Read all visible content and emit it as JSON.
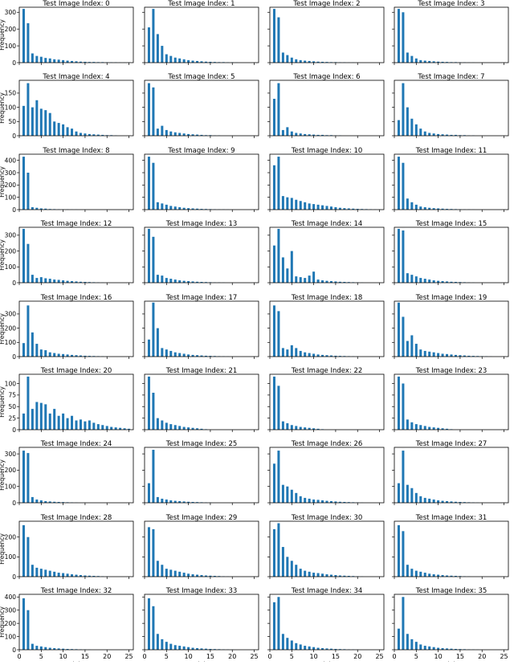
{
  "chart_data": {
    "type": "bar",
    "layout": "grid",
    "grid": {
      "rows": 9,
      "cols": 4
    },
    "bar_color": "#1f77b4",
    "xlabel": "|S|",
    "ylabel": "Frequency",
    "xlim": [
      0,
      26
    ],
    "x_ticks": [
      0,
      5,
      10,
      15,
      20,
      25
    ],
    "panels": [
      {
        "title": "Test Image Index: 0",
        "ylim": [
          0,
          330
        ],
        "y_ticks": [
          0,
          100,
          200,
          300
        ],
        "values": [
          320,
          235,
          55,
          40,
          35,
          28,
          25,
          20,
          18,
          15,
          12,
          10,
          8,
          6,
          5,
          4,
          4,
          3,
          3,
          2,
          2,
          2,
          1,
          1,
          1
        ]
      },
      {
        "title": "Test Image Index: 1",
        "ylim": [
          0,
          330
        ],
        "y_ticks": [
          0,
          100,
          200,
          300
        ],
        "values": [
          210,
          320,
          170,
          100,
          50,
          40,
          30,
          25,
          20,
          15,
          12,
          10,
          8,
          6,
          5,
          4,
          3,
          3,
          2,
          2,
          1
        ]
      },
      {
        "title": "Test Image Index: 2",
        "ylim": [
          0,
          330
        ],
        "y_ticks": [
          0,
          100,
          200,
          300
        ],
        "values": [
          320,
          270,
          60,
          45,
          30,
          20,
          15,
          12,
          10,
          8,
          6,
          5,
          4,
          3,
          3,
          2,
          2,
          1,
          1
        ]
      },
      {
        "title": "Test Image Index: 3",
        "ylim": [
          0,
          330
        ],
        "y_ticks": [
          0,
          100,
          200,
          300
        ],
        "values": [
          320,
          300,
          60,
          40,
          25,
          15,
          12,
          10,
          8,
          6,
          5,
          4,
          3,
          3,
          2,
          2,
          1,
          1
        ]
      },
      {
        "title": "Test Image Index: 4",
        "ylim": [
          0,
          195
        ],
        "y_ticks": [
          0,
          50,
          100,
          150
        ],
        "values": [
          105,
          185,
          100,
          125,
          95,
          90,
          80,
          50,
          45,
          40,
          30,
          25,
          15,
          10,
          8,
          6,
          5,
          4,
          3,
          2,
          2,
          1
        ]
      },
      {
        "title": "Test Image Index: 5",
        "ylim": [
          0,
          195
        ],
        "y_ticks": [
          0,
          50,
          100,
          150
        ],
        "values": [
          185,
          170,
          25,
          35,
          20,
          15,
          12,
          10,
          8,
          6,
          5,
          4,
          3,
          2,
          2,
          1,
          1
        ]
      },
      {
        "title": "Test Image Index: 6",
        "ylim": [
          0,
          195
        ],
        "y_ticks": [
          0,
          50,
          100,
          150
        ],
        "values": [
          130,
          185,
          20,
          30,
          15,
          10,
          8,
          6,
          5,
          4,
          3,
          3,
          2,
          2,
          1,
          1
        ]
      },
      {
        "title": "Test Image Index: 7",
        "ylim": [
          0,
          195
        ],
        "y_ticks": [
          0,
          50,
          100,
          150
        ],
        "values": [
          55,
          185,
          100,
          60,
          40,
          25,
          15,
          10,
          8,
          6,
          5,
          4,
          3,
          3,
          2,
          2,
          1,
          1
        ]
      },
      {
        "title": "Test Image Index: 8",
        "ylim": [
          0,
          450
        ],
        "y_ticks": [
          0,
          100,
          200,
          300,
          400
        ],
        "values": [
          430,
          300,
          20,
          15,
          10,
          8,
          5,
          4,
          3,
          2,
          2,
          1,
          1
        ]
      },
      {
        "title": "Test Image Index: 9",
        "ylim": [
          0,
          450
        ],
        "y_ticks": [
          0,
          100,
          200,
          300,
          400
        ],
        "values": [
          430,
          380,
          60,
          50,
          40,
          30,
          25,
          20,
          15,
          12,
          10,
          8,
          6,
          5,
          4,
          3,
          2,
          2,
          1
        ]
      },
      {
        "title": "Test Image Index: 10",
        "ylim": [
          0,
          450
        ],
        "y_ticks": [
          0,
          100,
          200,
          300,
          400
        ],
        "values": [
          360,
          430,
          110,
          100,
          95,
          80,
          70,
          60,
          50,
          45,
          40,
          35,
          30,
          25,
          20,
          15,
          12,
          10,
          8,
          6,
          5,
          4,
          3,
          2,
          1
        ]
      },
      {
        "title": "Test Image Index: 11",
        "ylim": [
          0,
          450
        ],
        "y_ticks": [
          0,
          100,
          200,
          300,
          400
        ],
        "values": [
          430,
          380,
          90,
          60,
          40,
          25,
          20,
          15,
          12,
          10,
          8,
          6,
          5,
          4,
          3,
          2,
          2,
          1
        ]
      },
      {
        "title": "Test Image Index: 12",
        "ylim": [
          0,
          350
        ],
        "y_ticks": [
          0,
          100,
          200,
          300
        ],
        "values": [
          340,
          245,
          50,
          30,
          35,
          28,
          25,
          20,
          18,
          15,
          12,
          10,
          8,
          6,
          5,
          4,
          3,
          2,
          1
        ]
      },
      {
        "title": "Test Image Index: 13",
        "ylim": [
          0,
          350
        ],
        "y_ticks": [
          0,
          100,
          200,
          300
        ],
        "values": [
          340,
          290,
          50,
          45,
          30,
          25,
          20,
          15,
          12,
          10,
          8,
          6,
          5,
          4,
          3,
          2,
          2,
          1
        ]
      },
      {
        "title": "Test Image Index: 14",
        "ylim": [
          0,
          350
        ],
        "y_ticks": [
          0,
          100,
          200,
          300
        ],
        "values": [
          235,
          340,
          160,
          90,
          200,
          40,
          35,
          30,
          45,
          70,
          20,
          15,
          12,
          10,
          8,
          6,
          5,
          4,
          3,
          2,
          1
        ]
      },
      {
        "title": "Test Image Index: 15",
        "ylim": [
          0,
          350
        ],
        "y_ticks": [
          0,
          100,
          200,
          300
        ],
        "values": [
          340,
          330,
          60,
          50,
          40,
          30,
          25,
          20,
          15,
          12,
          10,
          8,
          6,
          5,
          4,
          3,
          2,
          1
        ]
      },
      {
        "title": "Test Image Index: 16",
        "ylim": [
          0,
          390
        ],
        "y_ticks": [
          0,
          100,
          200,
          300
        ],
        "values": [
          95,
          360,
          170,
          90,
          50,
          45,
          30,
          25,
          20,
          18,
          15,
          12,
          10,
          8,
          6,
          5,
          4,
          3,
          2,
          1
        ]
      },
      {
        "title": "Test Image Index: 17",
        "ylim": [
          0,
          390
        ],
        "y_ticks": [
          0,
          100,
          200,
          300
        ],
        "values": [
          120,
          380,
          200,
          60,
          50,
          40,
          30,
          25,
          20,
          15,
          12,
          10,
          8,
          6,
          5,
          4,
          3,
          2,
          1
        ]
      },
      {
        "title": "Test Image Index: 18",
        "ylim": [
          0,
          390
        ],
        "y_ticks": [
          0,
          100,
          200,
          300
        ],
        "values": [
          360,
          320,
          60,
          50,
          80,
          60,
          40,
          30,
          25,
          20,
          15,
          12,
          10,
          8,
          6,
          5,
          4,
          3,
          2,
          1
        ]
      },
      {
        "title": "Test Image Index: 19",
        "ylim": [
          0,
          390
        ],
        "y_ticks": [
          0,
          100,
          200,
          300
        ],
        "values": [
          380,
          280,
          110,
          150,
          90,
          50,
          40,
          35,
          30,
          25,
          20,
          18,
          15,
          12,
          10,
          8,
          6,
          5,
          4,
          3,
          2,
          1
        ]
      },
      {
        "title": "Test Image Index: 20",
        "ylim": [
          0,
          120
        ],
        "y_ticks": [
          0,
          25,
          50,
          75,
          100
        ],
        "values": [
          35,
          115,
          45,
          60,
          58,
          55,
          35,
          45,
          30,
          35,
          25,
          30,
          20,
          22,
          18,
          20,
          15,
          12,
          10,
          8,
          6,
          5,
          4,
          3,
          2
        ]
      },
      {
        "title": "Test Image Index: 21",
        "ylim": [
          0,
          120
        ],
        "y_ticks": [
          0,
          25,
          50,
          75,
          100
        ],
        "values": [
          115,
          80,
          25,
          20,
          15,
          12,
          10,
          8,
          6,
          5,
          4,
          3,
          2,
          1
        ]
      },
      {
        "title": "Test Image Index: 22",
        "ylim": [
          0,
          120
        ],
        "y_ticks": [
          0,
          25,
          50,
          75,
          100
        ],
        "values": [
          115,
          95,
          18,
          14,
          10,
          8,
          6,
          5,
          4,
          3,
          2,
          1
        ]
      },
      {
        "title": "Test Image Index: 23",
        "ylim": [
          0,
          120
        ],
        "y_ticks": [
          0,
          25,
          50,
          75,
          100
        ],
        "values": [
          115,
          100,
          22,
          16,
          12,
          10,
          8,
          6,
          5,
          4,
          3,
          2,
          1
        ]
      },
      {
        "title": "Test Image Index: 24",
        "ylim": [
          0,
          340
        ],
        "y_ticks": [
          0,
          100,
          200,
          300
        ],
        "values": [
          320,
          305,
          35,
          20,
          15,
          10,
          8,
          6,
          5,
          4,
          3,
          2,
          1
        ]
      },
      {
        "title": "Test Image Index: 25",
        "ylim": [
          0,
          340
        ],
        "y_ticks": [
          0,
          100,
          200,
          300
        ],
        "values": [
          120,
          325,
          35,
          25,
          20,
          15,
          12,
          10,
          8,
          6,
          5,
          4,
          3,
          2,
          1
        ]
      },
      {
        "title": "Test Image Index: 26",
        "ylim": [
          0,
          340
        ],
        "y_ticks": [
          0,
          100,
          200,
          300
        ],
        "values": [
          240,
          320,
          110,
          100,
          80,
          60,
          40,
          30,
          25,
          20,
          18,
          15,
          12,
          10,
          8,
          6,
          5,
          4,
          3,
          2,
          1
        ]
      },
      {
        "title": "Test Image Index: 27",
        "ylim": [
          0,
          340
        ],
        "y_ticks": [
          0,
          100,
          200,
          300
        ],
        "values": [
          120,
          320,
          110,
          90,
          60,
          40,
          30,
          25,
          20,
          15,
          12,
          10,
          8,
          6,
          5,
          4,
          3,
          2,
          1
        ]
      },
      {
        "title": "Test Image Index: 28",
        "ylim": [
          0,
          280
        ],
        "y_ticks": [
          0,
          100,
          200
        ],
        "values": [
          260,
          200,
          60,
          45,
          40,
          35,
          30,
          25,
          20,
          18,
          15,
          12,
          10,
          8,
          6,
          5,
          4,
          3,
          2,
          1
        ]
      },
      {
        "title": "Test Image Index: 29",
        "ylim": [
          0,
          280
        ],
        "y_ticks": [
          0,
          100,
          200
        ],
        "values": [
          250,
          240,
          80,
          60,
          40,
          35,
          30,
          25,
          20,
          15,
          12,
          10,
          8,
          6,
          5,
          4,
          3,
          2,
          1
        ]
      },
      {
        "title": "Test Image Index: 30",
        "ylim": [
          0,
          280
        ],
        "y_ticks": [
          0,
          100,
          200
        ],
        "values": [
          240,
          270,
          150,
          100,
          80,
          60,
          40,
          30,
          25,
          20,
          18,
          15,
          12,
          10,
          8,
          6,
          5,
          4,
          3,
          2,
          1
        ]
      },
      {
        "title": "Test Image Index: 31",
        "ylim": [
          0,
          280
        ],
        "y_ticks": [
          0,
          100,
          200
        ],
        "values": [
          260,
          230,
          60,
          40,
          30,
          25,
          20,
          15,
          12,
          10,
          8,
          6,
          5,
          4,
          3,
          2,
          1
        ]
      },
      {
        "title": "Test Image Index: 32",
        "ylim": [
          0,
          420
        ],
        "y_ticks": [
          0,
          100,
          200,
          300,
          400
        ],
        "values": [
          390,
          300,
          45,
          30,
          25,
          20,
          15,
          12,
          10,
          8,
          6,
          5,
          4,
          3,
          2,
          1
        ]
      },
      {
        "title": "Test Image Index: 33",
        "ylim": [
          0,
          420
        ],
        "y_ticks": [
          0,
          100,
          200,
          300,
          400
        ],
        "values": [
          390,
          330,
          120,
          80,
          60,
          45,
          35,
          30,
          25,
          20,
          15,
          12,
          10,
          8,
          6,
          5,
          4,
          3,
          2,
          1
        ]
      },
      {
        "title": "Test Image Index: 34",
        "ylim": [
          0,
          420
        ],
        "y_ticks": [
          0,
          100,
          200,
          300,
          400
        ],
        "values": [
          360,
          400,
          120,
          90,
          70,
          50,
          40,
          30,
          25,
          20,
          15,
          12,
          10,
          8,
          6,
          5,
          4,
          3,
          2,
          1
        ]
      },
      {
        "title": "Test Image Index: 35",
        "ylim": [
          0,
          420
        ],
        "y_ticks": [
          0,
          100,
          200,
          300,
          400
        ],
        "values": [
          160,
          400,
          120,
          80,
          60,
          40,
          30,
          25,
          20,
          15,
          12,
          10,
          8,
          6,
          5,
          4,
          3,
          2,
          1
        ]
      }
    ]
  }
}
